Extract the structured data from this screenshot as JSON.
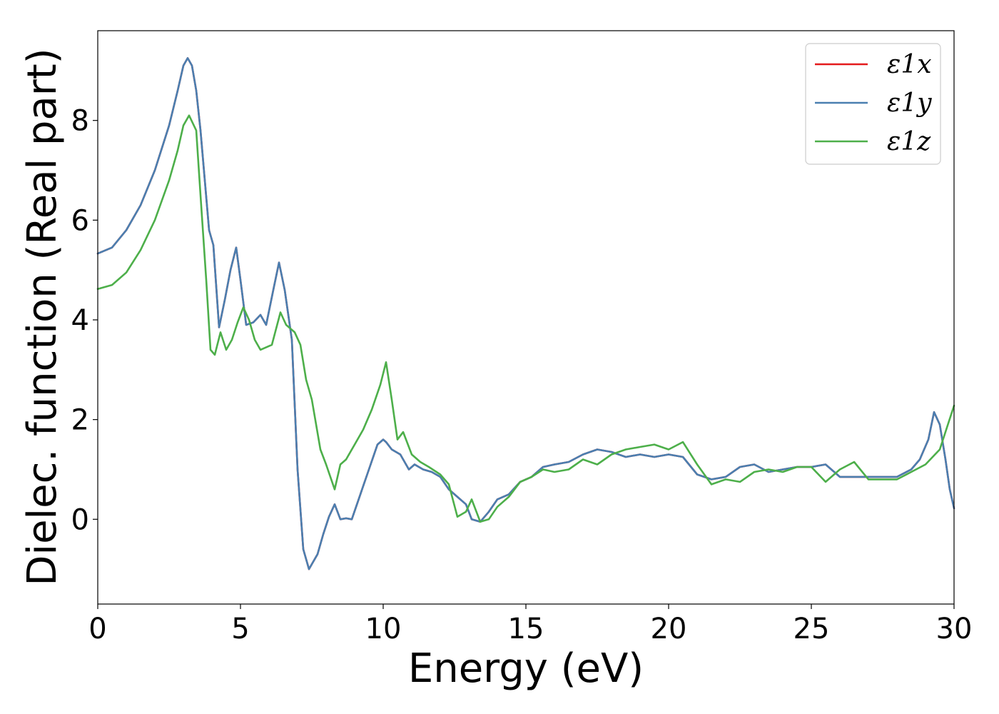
{
  "chart_data": {
    "type": "line",
    "xlabel": "Energy (eV)",
    "ylabel": "Dielec. function (Real part)",
    "xlim": [
      0,
      30
    ],
    "ylim": [
      -1.7,
      9.8
    ],
    "xticks": [
      0,
      5,
      10,
      15,
      20,
      25,
      30
    ],
    "yticks": [
      0,
      2,
      4,
      6,
      8
    ],
    "grid": false,
    "legend_position": "top-right",
    "series": [
      {
        "name": "ε1x",
        "color": "#e41a1c",
        "x": [
          0,
          0.5,
          1,
          1.5,
          2,
          2.5,
          2.8,
          3.0,
          3.15,
          3.3,
          3.45,
          3.6,
          3.75,
          3.9,
          4.05,
          4.25,
          4.45,
          4.65,
          4.85,
          5.0,
          5.2,
          5.45,
          5.7,
          5.9,
          6.15,
          6.35,
          6.55,
          6.8,
          7.0,
          7.2,
          7.4,
          7.5,
          7.7,
          7.9,
          8.1,
          8.3,
          8.5,
          8.7,
          8.9,
          9.2,
          9.5,
          9.8,
          10.0,
          10.1,
          10.3,
          10.6,
          10.9,
          11.1,
          11.4,
          11.7,
          12.0,
          12.3,
          12.6,
          12.9,
          13.1,
          13.4,
          13.7,
          14.0,
          14.4,
          14.8,
          15.2,
          15.6,
          16.0,
          16.5,
          17.0,
          17.5,
          18.0,
          18.5,
          19.0,
          19.5,
          20.0,
          20.5,
          21.0,
          21.5,
          22.0,
          22.5,
          23.0,
          23.5,
          24.0,
          24.5,
          25.0,
          25.5,
          26.0,
          26.5,
          27.0,
          27.5,
          28.0,
          28.5,
          28.8,
          29.1,
          29.3,
          29.5,
          29.7,
          29.85,
          30.0
        ],
        "y": [
          5.33,
          5.45,
          5.8,
          6.3,
          7.0,
          7.9,
          8.6,
          9.1,
          9.25,
          9.1,
          8.6,
          7.8,
          6.8,
          5.8,
          5.5,
          3.85,
          4.4,
          5.0,
          5.45,
          4.8,
          3.9,
          3.95,
          4.1,
          3.9,
          4.6,
          5.15,
          4.6,
          3.6,
          1.0,
          -0.6,
          -1.0,
          -0.9,
          -0.7,
          -0.3,
          0.05,
          0.3,
          0.0,
          0.02,
          0.0,
          0.5,
          1.0,
          1.5,
          1.6,
          1.55,
          1.4,
          1.3,
          1.0,
          1.1,
          1.0,
          0.95,
          0.85,
          0.6,
          0.45,
          0.3,
          0.0,
          -0.05,
          0.15,
          0.4,
          0.5,
          0.75,
          0.85,
          1.05,
          1.1,
          1.15,
          1.3,
          1.4,
          1.35,
          1.25,
          1.3,
          1.25,
          1.3,
          1.25,
          0.9,
          0.8,
          0.85,
          1.05,
          1.1,
          0.95,
          1.0,
          1.05,
          1.05,
          1.1,
          0.85,
          0.85,
          0.85,
          0.85,
          0.85,
          1.0,
          1.2,
          1.6,
          2.15,
          1.9,
          1.2,
          0.6,
          0.22
        ]
      },
      {
        "name": "ε1y",
        "color": "#4a7fb0",
        "x": [
          0,
          0.5,
          1,
          1.5,
          2,
          2.5,
          2.8,
          3.0,
          3.15,
          3.3,
          3.45,
          3.6,
          3.75,
          3.9,
          4.05,
          4.25,
          4.45,
          4.65,
          4.85,
          5.0,
          5.2,
          5.45,
          5.7,
          5.9,
          6.15,
          6.35,
          6.55,
          6.8,
          7.0,
          7.2,
          7.4,
          7.5,
          7.7,
          7.9,
          8.1,
          8.3,
          8.5,
          8.7,
          8.9,
          9.2,
          9.5,
          9.8,
          10.0,
          10.1,
          10.3,
          10.6,
          10.9,
          11.1,
          11.4,
          11.7,
          12.0,
          12.3,
          12.6,
          12.9,
          13.1,
          13.4,
          13.7,
          14.0,
          14.4,
          14.8,
          15.2,
          15.6,
          16.0,
          16.5,
          17.0,
          17.5,
          18.0,
          18.5,
          19.0,
          19.5,
          20.0,
          20.5,
          21.0,
          21.5,
          22.0,
          22.5,
          23.0,
          23.5,
          24.0,
          24.5,
          25.0,
          25.5,
          26.0,
          26.5,
          27.0,
          27.5,
          28.0,
          28.5,
          28.8,
          29.1,
          29.3,
          29.5,
          29.7,
          29.85,
          30.0
        ],
        "y": [
          5.33,
          5.45,
          5.8,
          6.3,
          7.0,
          7.9,
          8.6,
          9.1,
          9.25,
          9.1,
          8.6,
          7.8,
          6.8,
          5.8,
          5.5,
          3.85,
          4.4,
          5.0,
          5.45,
          4.8,
          3.9,
          3.95,
          4.1,
          3.9,
          4.6,
          5.15,
          4.6,
          3.6,
          1.0,
          -0.6,
          -1.0,
          -0.9,
          -0.7,
          -0.3,
          0.05,
          0.3,
          0.0,
          0.02,
          0.0,
          0.5,
          1.0,
          1.5,
          1.6,
          1.55,
          1.4,
          1.3,
          1.0,
          1.1,
          1.0,
          0.95,
          0.85,
          0.6,
          0.45,
          0.3,
          0.0,
          -0.05,
          0.15,
          0.4,
          0.5,
          0.75,
          0.85,
          1.05,
          1.1,
          1.15,
          1.3,
          1.4,
          1.35,
          1.25,
          1.3,
          1.25,
          1.3,
          1.25,
          0.9,
          0.8,
          0.85,
          1.05,
          1.1,
          0.95,
          1.0,
          1.05,
          1.05,
          1.1,
          0.85,
          0.85,
          0.85,
          0.85,
          0.85,
          1.0,
          1.2,
          1.6,
          2.15,
          1.9,
          1.2,
          0.6,
          0.22
        ]
      },
      {
        "name": "ε1z",
        "color": "#4daf4a",
        "x": [
          0,
          0.5,
          1,
          1.5,
          2,
          2.5,
          2.8,
          3.0,
          3.2,
          3.45,
          3.6,
          3.8,
          3.95,
          4.1,
          4.3,
          4.5,
          4.7,
          4.9,
          5.1,
          5.3,
          5.5,
          5.7,
          5.9,
          6.1,
          6.4,
          6.6,
          6.9,
          7.1,
          7.3,
          7.5,
          7.8,
          8.0,
          8.3,
          8.5,
          8.7,
          9.0,
          9.3,
          9.6,
          9.9,
          10.1,
          10.3,
          10.5,
          10.7,
          11.0,
          11.3,
          11.6,
          12.0,
          12.3,
          12.6,
          12.9,
          13.1,
          13.4,
          13.7,
          14.0,
          14.4,
          14.8,
          15.2,
          15.6,
          16.0,
          16.5,
          17.0,
          17.5,
          18.0,
          18.5,
          19.0,
          19.5,
          20.0,
          20.5,
          21.0,
          21.5,
          22.0,
          22.5,
          23.0,
          23.5,
          24.0,
          24.5,
          25.0,
          25.5,
          26.0,
          26.5,
          27.0,
          27.5,
          28.0,
          28.5,
          29.0,
          29.5,
          30.0
        ],
        "y": [
          4.62,
          4.7,
          4.95,
          5.4,
          6.0,
          6.8,
          7.4,
          7.9,
          8.1,
          7.8,
          6.5,
          4.8,
          3.4,
          3.3,
          3.75,
          3.4,
          3.6,
          3.95,
          4.25,
          4.0,
          3.6,
          3.4,
          3.45,
          3.5,
          4.15,
          3.9,
          3.75,
          3.5,
          2.8,
          2.4,
          1.4,
          1.1,
          0.6,
          1.1,
          1.2,
          1.5,
          1.8,
          2.2,
          2.7,
          3.15,
          2.4,
          1.6,
          1.75,
          1.3,
          1.15,
          1.05,
          0.9,
          0.7,
          0.05,
          0.15,
          0.4,
          -0.05,
          0.0,
          0.25,
          0.45,
          0.75,
          0.85,
          1.0,
          0.95,
          1.0,
          1.2,
          1.1,
          1.3,
          1.4,
          1.45,
          1.5,
          1.4,
          1.55,
          1.1,
          0.7,
          0.8,
          0.75,
          0.95,
          1.0,
          0.95,
          1.05,
          1.05,
          0.75,
          1.0,
          1.15,
          0.8,
          0.8,
          0.8,
          0.95,
          1.1,
          1.4,
          2.28
        ]
      }
    ]
  }
}
